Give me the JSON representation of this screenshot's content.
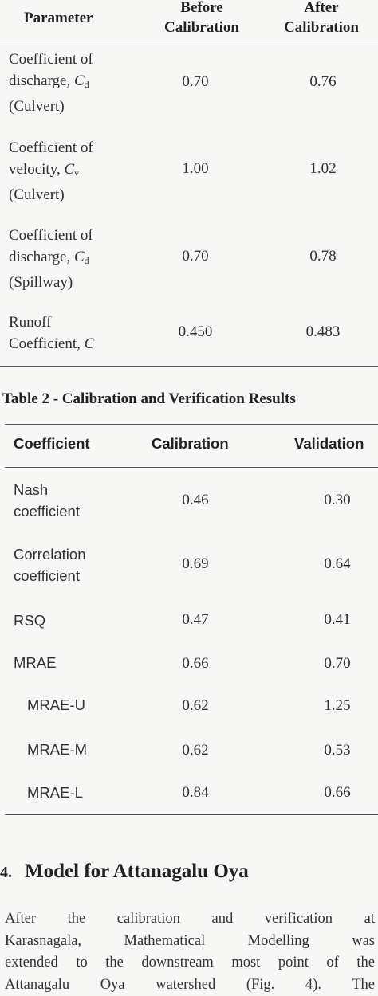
{
  "table1": {
    "headers": {
      "parameter": "Parameter",
      "before": [
        "Before",
        "Calibration"
      ],
      "after": [
        "After",
        "Calibration"
      ]
    },
    "rows": [
      {
        "label": [
          "Coefficient of",
          "discharge, ",
          "(Culvert)"
        ],
        "symbol": "C",
        "sub": "d",
        "before": "0.70",
        "after": "0.76"
      },
      {
        "label": [
          "Coefficient of",
          "velocity, ",
          "(Culvert)"
        ],
        "symbol": "C",
        "sub": "v",
        "before": "1.00",
        "after": "1.02"
      },
      {
        "label": [
          "Coefficient of",
          "discharge, ",
          "(Spillway)"
        ],
        "symbol": "C",
        "sub": "d",
        "before": "0.70",
        "after": "0.78"
      },
      {
        "label": [
          "Runoff",
          "Coefficient, "
        ],
        "symbol": "C",
        "before": "0.450",
        "after": "0.483"
      }
    ]
  },
  "table2": {
    "caption": "Table 2 - Calibration and Verification Results",
    "headers": {
      "coefficient": "Coefficient",
      "calibration": "Calibration",
      "validation": "Validation"
    },
    "rows": [
      {
        "label": [
          "Nash",
          "coefficient"
        ],
        "calibration": "0.46",
        "validation": "0.30"
      },
      {
        "label": [
          "Correlation",
          "coefficient"
        ],
        "calibration": "0.69",
        "validation": "0.64"
      },
      {
        "label": [
          "RSQ"
        ],
        "calibration": "0.47",
        "validation": "0.41"
      },
      {
        "label": [
          "MRAE"
        ],
        "calibration": "0.66",
        "validation": "0.70"
      },
      {
        "label": [
          "MRAE-U"
        ],
        "calibration": "0.62",
        "validation": "1.25"
      },
      {
        "label": [
          "MRAE-M"
        ],
        "calibration": "0.62",
        "validation": "0.53"
      },
      {
        "label": [
          "MRAE-L"
        ],
        "calibration": "0.84",
        "validation": "0.66"
      }
    ]
  },
  "section": {
    "number": "4.",
    "title": "Model for Attanagalu Oya",
    "paragraph_lines": [
      "After the calibration and verification at",
      "Karasnagala, Mathematical Modelling was",
      "extended to the downstream most point of the",
      "Attanagalu Oya watershed (Fig. 4). The"
    ]
  }
}
